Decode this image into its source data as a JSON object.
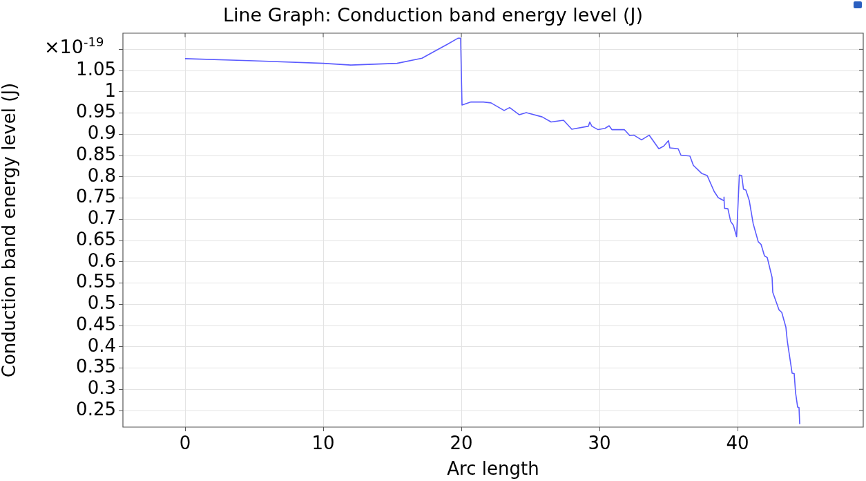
{
  "chart_data": {
    "type": "line",
    "title": "Line Graph: Conduction band energy level (J)",
    "xlabel": "Arc length",
    "ylabel": "Conduction band energy level (J)",
    "annotations": [
      "×10$^{-19}$"
    ],
    "xlim": [
      -4.5,
      49.1
    ],
    "xticks": [
      0,
      10,
      20,
      30,
      40
    ],
    "ylim": [
      0.211,
      1.138
    ],
    "yticks": [
      0.25,
      0.3,
      0.35,
      0.4,
      0.45,
      0.5,
      0.55,
      0.6,
      0.65,
      0.7,
      0.75,
      0.8,
      0.85,
      0.9,
      0.95,
      1,
      1.05,
      {
        "value": 1.1,
        "label": null
      }
    ],
    "grid": true,
    "legend": false,
    "marker": "none",
    "line_style": "solid",
    "series": [
      {
        "color": "#5b5bff",
        "x": [
          0,
          5,
          10,
          12,
          15.35,
          17.15,
          18.15,
          19,
          19.75,
          19.95,
          20.05,
          20.7,
          21.6,
          22.15,
          23.1,
          23.5,
          24.2,
          24.7,
          25.85,
          26.5,
          27.4,
          28.0,
          29.2,
          29.3,
          29.45,
          29.9,
          30.4,
          30.7,
          30.9,
          31.8,
          32.2,
          32.5,
          33.05,
          33.6,
          34.3,
          34.65,
          35.0,
          35.1,
          35.7,
          35.9,
          36.55,
          36.8,
          37.4,
          37.8,
          38.3,
          38.6,
          39.0,
          39.02,
          39.05,
          39.3,
          39.5,
          39.7,
          39.93,
          40.13,
          40.3,
          40.43,
          40.6,
          40.85,
          41.13,
          41.5,
          41.7,
          41.95,
          42.15,
          42.5,
          42.55,
          43.0,
          43.2,
          43.5,
          43.6,
          43.95,
          44.1,
          44.2,
          44.35,
          44.45,
          44.5
        ],
        "values": [
          1.078,
          1.073,
          1.067,
          1.063,
          1.067,
          1.079,
          1.097,
          1.112,
          1.126,
          1.126,
          0.969,
          0.976,
          0.976,
          0.974,
          0.956,
          0.963,
          0.946,
          0.951,
          0.941,
          0.929,
          0.933,
          0.912,
          0.919,
          0.929,
          0.919,
          0.911,
          0.914,
          0.92,
          0.911,
          0.911,
          0.897,
          0.898,
          0.887,
          0.898,
          0.866,
          0.872,
          0.885,
          0.868,
          0.866,
          0.851,
          0.849,
          0.827,
          0.808,
          0.803,
          0.766,
          0.751,
          0.744,
          0.752,
          0.726,
          0.725,
          0.695,
          0.686,
          0.659,
          0.804,
          0.803,
          0.771,
          0.769,
          0.744,
          0.69,
          0.647,
          0.641,
          0.614,
          0.61,
          0.563,
          0.528,
          0.487,
          0.481,
          0.446,
          0.414,
          0.338,
          0.337,
          0.292,
          0.258,
          0.257,
          0.218
        ]
      }
    ]
  }
}
